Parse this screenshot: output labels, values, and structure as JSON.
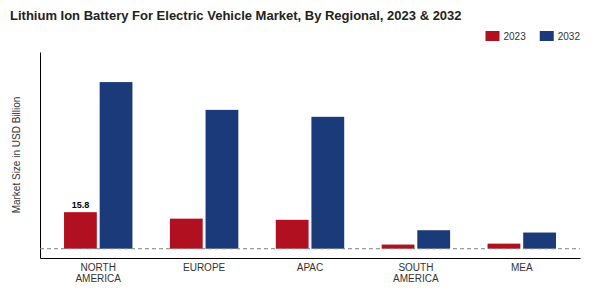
{
  "chart_data": {
    "type": "bar",
    "title": "Lithium Ion Battery For Electric Vehicle Market, By Regional, 2023 & 2032",
    "y_label": "Market Size in USD Billion",
    "categories": [
      "NORTH\nAMERICA",
      "EUROPE",
      "APAC",
      "SOUTH\nAMERICA",
      "MEA"
    ],
    "series": [
      {
        "name": "2023",
        "color": "#b01020",
        "values": [
          15.8,
          13.0,
          12.5,
          1.8,
          2.2
        ]
      },
      {
        "name": "2032",
        "color": "#1a3a7a",
        "values": [
          72,
          60,
          57,
          8,
          7
        ]
      }
    ],
    "ylim": [
      -4,
      85
    ],
    "tick_labels": "x",
    "grid": false,
    "legend": "upper right",
    "hline": 0,
    "annotations": [
      {
        "text": "15.8",
        "x": "NORTH\nAMERICA",
        "y": 15.8,
        "series": "2023"
      }
    ]
  }
}
